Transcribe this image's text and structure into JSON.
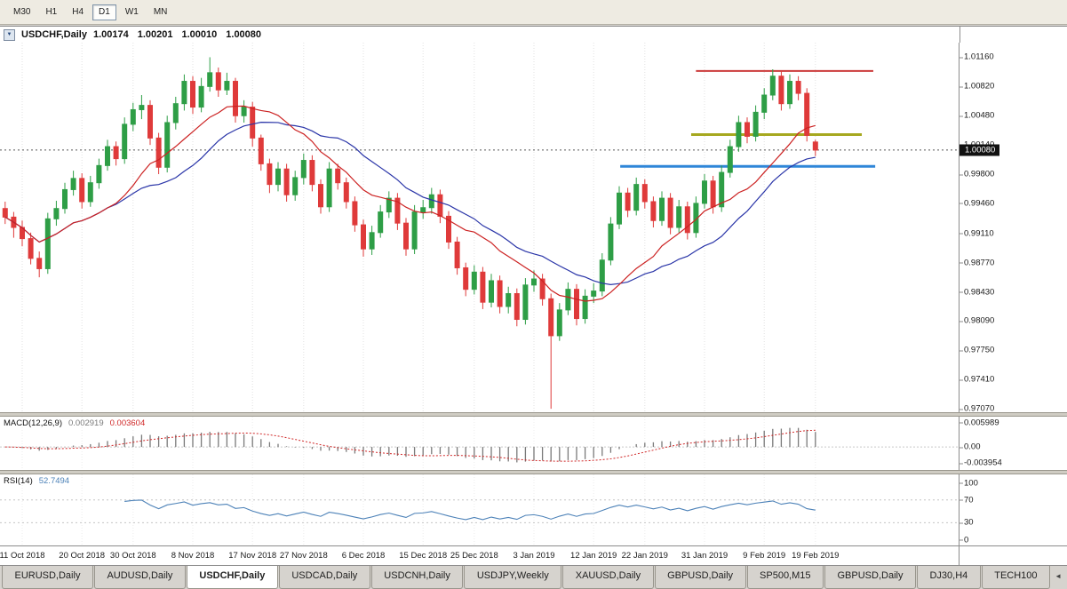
{
  "toolbar": {
    "timeframes": [
      {
        "label": "M30",
        "active": false
      },
      {
        "label": "H1",
        "active": false
      },
      {
        "label": "H4",
        "active": false
      },
      {
        "label": "D1",
        "active": true
      },
      {
        "label": "W1",
        "active": false
      },
      {
        "label": "MN",
        "active": false
      }
    ]
  },
  "chart": {
    "header": {
      "collapse_icon": "▼",
      "symbol": "USDCHF,Daily",
      "open": "1.00174",
      "high": "1.00201",
      "low": "1.00010",
      "close": "1.00080"
    }
  },
  "chart_data": [
    {
      "type": "candlestick",
      "title": "USDCHF,Daily",
      "ylim": [
        0.9703,
        1.0133
      ],
      "x_step": 9.6,
      "y_ticks": [
        "1.01160",
        "1.00820",
        "1.00480",
        "1.00140",
        "0.99800",
        "0.99460",
        "0.99110",
        "0.98770",
        "0.98430",
        "0.98090",
        "0.97750",
        "0.97410",
        "0.97070"
      ],
      "current_price": "1.00080",
      "x_ticks": [
        {
          "index": 2,
          "label": "11 Oct 2018"
        },
        {
          "index": 9,
          "label": "20 Oct 2018"
        },
        {
          "index": 15,
          "label": "30 Oct 2018"
        },
        {
          "index": 22,
          "label": "8 Nov 2018"
        },
        {
          "index": 29,
          "label": "17 Nov 2018"
        },
        {
          "index": 35,
          "label": "27 Nov 2018"
        },
        {
          "index": 42,
          "label": "6 Dec 2018"
        },
        {
          "index": 49,
          "label": "15 Dec 2018"
        },
        {
          "index": 55,
          "label": "25 Dec 2018"
        },
        {
          "index": 62,
          "label": "3 Jan 2019"
        },
        {
          "index": 69,
          "label": "12 Jan 2019"
        },
        {
          "index": 75,
          "label": "22 Jan 2019"
        },
        {
          "index": 82,
          "label": "31 Jan 2019"
        },
        {
          "index": 89,
          "label": "9 Feb 2019"
        },
        {
          "index": 95,
          "label": "19 Feb 2019"
        }
      ],
      "style": {
        "up_color": "#2e9e46",
        "down_color": "#df3a3a"
      },
      "overlays": {
        "ma_fast": {
          "type": "sma",
          "period": 13,
          "color": "#cc2222"
        },
        "ma_slow": {
          "type": "sma",
          "period": 21,
          "color": "#2a35a8"
        },
        "hlines": [
          {
            "name": "resistance-line-red",
            "price": 1.01,
            "x1": 0.726,
            "x2": 0.911,
            "color": "#cc3b3b",
            "width": 2
          },
          {
            "name": "trendline-olive",
            "price": 1.0026,
            "x1": 0.721,
            "x2": 0.899,
            "color": "#a6a81f",
            "width": 3
          },
          {
            "name": "support-line-blue",
            "price": 0.9989,
            "x1": 0.647,
            "x2": 0.913,
            "color": "#2f86d8",
            "width": 3
          }
        ]
      },
      "ohlc": [
        [
          0.994,
          0.9948,
          0.9922,
          0.993
        ],
        [
          0.993,
          0.9936,
          0.9906,
          0.9918
        ],
        [
          0.9918,
          0.9926,
          0.9896,
          0.9905
        ],
        [
          0.9905,
          0.9912,
          0.9875,
          0.9882
        ],
        [
          0.9882,
          0.989,
          0.986,
          0.987
        ],
        [
          0.987,
          0.9935,
          0.9864,
          0.9928
        ],
        [
          0.9928,
          0.9949,
          0.992,
          0.994
        ],
        [
          0.994,
          0.997,
          0.9934,
          0.9962
        ],
        [
          0.9962,
          0.9984,
          0.9955,
          0.9975
        ],
        [
          0.9975,
          0.9981,
          0.994,
          0.9948
        ],
        [
          0.9948,
          0.9978,
          0.9942,
          0.997
        ],
        [
          0.997,
          0.9998,
          0.9963,
          0.999
        ],
        [
          0.999,
          1.002,
          0.9984,
          1.0012
        ],
        [
          1.0012,
          1.0018,
          0.999,
          0.9998
        ],
        [
          0.9998,
          1.0046,
          0.9992,
          1.0038
        ],
        [
          1.0038,
          1.0063,
          1.003,
          1.0055
        ],
        [
          1.0055,
          1.0072,
          1.0044,
          1.006
        ],
        [
          1.006,
          1.0066,
          1.0014,
          1.0022
        ],
        [
          1.0022,
          1.0028,
          0.998,
          0.9988
        ],
        [
          0.9988,
          1.0048,
          0.9982,
          1.004
        ],
        [
          1.004,
          1.007,
          1.0032,
          1.0062
        ],
        [
          1.0062,
          1.0096,
          1.0054,
          1.0088
        ],
        [
          1.0088,
          1.0094,
          1.005,
          1.0058
        ],
        [
          1.0058,
          1.0092,
          1.0052,
          1.0082
        ],
        [
          1.0082,
          1.0116,
          1.0076,
          1.0098
        ],
        [
          1.0098,
          1.0104,
          1.007,
          1.0078
        ],
        [
          1.0078,
          1.0098,
          1.0072,
          1.0088
        ],
        [
          1.0088,
          1.0092,
          1.004,
          1.0048
        ],
        [
          1.0048,
          1.0066,
          1.004,
          1.0058
        ],
        [
          1.0058,
          1.0064,
          1.0012,
          1.0022
        ],
        [
          1.0022,
          1.0026,
          0.9984,
          0.9992
        ],
        [
          0.9992,
          0.9998,
          0.9958,
          0.9968
        ],
        [
          0.9968,
          0.9994,
          0.996,
          0.9986
        ],
        [
          0.9986,
          0.9992,
          0.9948,
          0.9956
        ],
        [
          0.9956,
          0.9984,
          0.9949,
          0.9976
        ],
        [
          0.9976,
          1.0004,
          0.9968,
          0.9996
        ],
        [
          0.9996,
          1.0002,
          0.996,
          0.9968
        ],
        [
          0.9968,
          0.9974,
          0.9934,
          0.9942
        ],
        [
          0.9942,
          0.9994,
          0.9936,
          0.9986
        ],
        [
          0.9986,
          0.9992,
          0.9962,
          0.997
        ],
        [
          0.997,
          0.9976,
          0.994,
          0.9948
        ],
        [
          0.9948,
          0.9954,
          0.9913,
          0.9921
        ],
        [
          0.9921,
          0.9927,
          0.9884,
          0.9893
        ],
        [
          0.9893,
          0.992,
          0.9886,
          0.9912
        ],
        [
          0.9912,
          0.9944,
          0.9906,
          0.9936
        ],
        [
          0.9936,
          0.996,
          0.9929,
          0.9952
        ],
        [
          0.9952,
          0.9958,
          0.9915,
          0.9923
        ],
        [
          0.9923,
          0.9929,
          0.9885,
          0.9893
        ],
        [
          0.9893,
          0.9944,
          0.9887,
          0.9936
        ],
        [
          0.9936,
          0.995,
          0.9928,
          0.9941
        ],
        [
          0.9941,
          0.9964,
          0.9934,
          0.9956
        ],
        [
          0.9956,
          0.9962,
          0.9923,
          0.9931
        ],
        [
          0.9931,
          0.9937,
          0.9893,
          0.9901
        ],
        [
          0.9901,
          0.9907,
          0.9863,
          0.9871
        ],
        [
          0.9871,
          0.9877,
          0.9838,
          0.9846
        ],
        [
          0.9846,
          0.9874,
          0.984,
          0.9866
        ],
        [
          0.9866,
          0.9872,
          0.9823,
          0.9831
        ],
        [
          0.9831,
          0.9864,
          0.9825,
          0.9856
        ],
        [
          0.9856,
          0.9862,
          0.9818,
          0.9826
        ],
        [
          0.9826,
          0.9849,
          0.9818,
          0.9841
        ],
        [
          0.9841,
          0.9847,
          0.9803,
          0.9811
        ],
        [
          0.9811,
          0.9859,
          0.9805,
          0.9851
        ],
        [
          0.9851,
          0.9868,
          0.9843,
          0.9858
        ],
        [
          0.9858,
          0.9864,
          0.9827,
          0.9835
        ],
        [
          0.9835,
          0.9841,
          0.9707,
          0.9792
        ],
        [
          0.9792,
          0.983,
          0.9786,
          0.9822
        ],
        [
          0.9822,
          0.9854,
          0.9816,
          0.9846
        ],
        [
          0.9846,
          0.9852,
          0.9804,
          0.9812
        ],
        [
          0.9812,
          0.9846,
          0.9806,
          0.9838
        ],
        [
          0.9838,
          0.9853,
          0.983,
          0.9844
        ],
        [
          0.9844,
          0.9888,
          0.9838,
          0.988
        ],
        [
          0.988,
          0.993,
          0.9874,
          0.9922
        ],
        [
          0.9922,
          0.9966,
          0.9916,
          0.9958
        ],
        [
          0.9958,
          0.9964,
          0.993,
          0.9938
        ],
        [
          0.9938,
          0.9976,
          0.9932,
          0.9968
        ],
        [
          0.9968,
          0.9974,
          0.994,
          0.9948
        ],
        [
          0.9948,
          0.9954,
          0.9918,
          0.9926
        ],
        [
          0.9926,
          0.996,
          0.992,
          0.9952
        ],
        [
          0.9952,
          0.9958,
          0.991,
          0.9918
        ],
        [
          0.9918,
          0.995,
          0.9912,
          0.9942
        ],
        [
          0.9942,
          0.9948,
          0.9904,
          0.9912
        ],
        [
          0.9912,
          0.9954,
          0.9906,
          0.9946
        ],
        [
          0.9946,
          0.998,
          0.994,
          0.9972
        ],
        [
          0.9972,
          0.9978,
          0.9934,
          0.9942
        ],
        [
          0.9942,
          0.999,
          0.9936,
          0.9982
        ],
        [
          0.9982,
          1.002,
          0.9976,
          1.0012
        ],
        [
          1.0012,
          1.0048,
          1.0006,
          1.004
        ],
        [
          1.004,
          1.0046,
          1.0016,
          1.0024
        ],
        [
          1.0024,
          1.006,
          1.0018,
          1.0052
        ],
        [
          1.0052,
          1.008,
          1.0044,
          1.0072
        ],
        [
          1.0072,
          1.0102,
          1.0066,
          1.0094
        ],
        [
          1.0094,
          1.01,
          1.0054,
          1.0062
        ],
        [
          1.0062,
          1.0096,
          1.0056,
          1.0088
        ],
        [
          1.0088,
          1.0094,
          1.0066,
          1.0074
        ],
        [
          1.0074,
          1.008,
          1.0018,
          1.0025
        ],
        [
          1.00174,
          1.00201,
          1.0001,
          1.0008
        ]
      ]
    },
    {
      "type": "macd",
      "label": "MACD(12,26,9)",
      "value_main": "0.002919",
      "value_signal": "0.003604",
      "params": [
        12,
        26,
        9
      ],
      "ylim": [
        -0.0057,
        0.0075
      ],
      "y_ticks": [
        "0.005989",
        "0.00",
        "-0.003954"
      ],
      "style": {
        "histogram_color": "#7a7a7a",
        "signal_color": "#d02828"
      }
    },
    {
      "type": "rsi",
      "label": "RSI(14)",
      "value": "52.7494",
      "period": 14,
      "ylim": [
        -10,
        115
      ],
      "levels": [
        70,
        30
      ],
      "y_ticks": [
        "100",
        "70",
        "30",
        "0"
      ],
      "color": "#4d82b8"
    }
  ],
  "tabs": [
    {
      "label": "EURUSD,Daily",
      "active": false
    },
    {
      "label": "AUDUSD,Daily",
      "active": false
    },
    {
      "label": "USDCHF,Daily",
      "active": true
    },
    {
      "label": "USDCAD,Daily",
      "active": false
    },
    {
      "label": "USDCNH,Daily",
      "active": false
    },
    {
      "label": "USDJPY,Weekly",
      "active": false
    },
    {
      "label": "XAUUSD,Daily",
      "active": false
    },
    {
      "label": "GBPUSD,Daily",
      "active": false
    },
    {
      "label": "SP500,M15",
      "active": false
    },
    {
      "label": "GBPUSD,Daily",
      "active": false
    },
    {
      "label": "DJ30,H4",
      "active": false
    },
    {
      "label": "TECH100",
      "active": false
    }
  ],
  "tabbar": {
    "scroll_icon": "◄"
  }
}
